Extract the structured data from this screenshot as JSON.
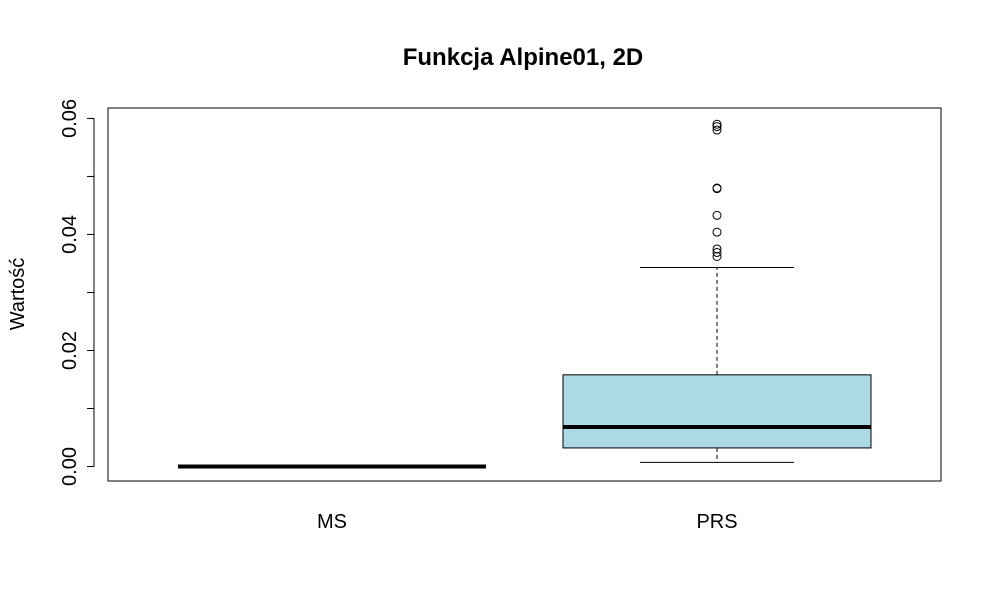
{
  "chart_data": {
    "type": "box",
    "title": "Funkcja Alpine01, 2D",
    "xlabel": "",
    "ylabel": "Wartość",
    "ylim": [
      -0.0025,
      0.0618
    ],
    "yticks": [
      0.0,
      0.01,
      0.02,
      0.03,
      0.04,
      0.05,
      0.06
    ],
    "ytick_labels": [
      "0.00",
      "",
      "0.02",
      "",
      "0.04",
      "",
      "0.06"
    ],
    "categories": [
      "MS",
      "PRS"
    ],
    "box_fill_colors": [
      "#ADD8E6",
      "#ADD8E6"
    ],
    "grid": false,
    "legend": "none",
    "boxes": [
      {
        "name": "MS",
        "whisker_low": 0.0,
        "q1": 0.0,
        "median": 0.0,
        "q3": 0.0,
        "whisker_high": 0.0,
        "outliers": []
      },
      {
        "name": "PRS",
        "whisker_low": 0.0007,
        "q1": 0.0032,
        "median": 0.0068,
        "q3": 0.0158,
        "whisker_high": 0.0343,
        "outliers": [
          0.0362,
          0.0369,
          0.0375,
          0.0404,
          0.0433,
          0.0479,
          0.048,
          0.058,
          0.0586,
          0.059
        ]
      }
    ]
  }
}
